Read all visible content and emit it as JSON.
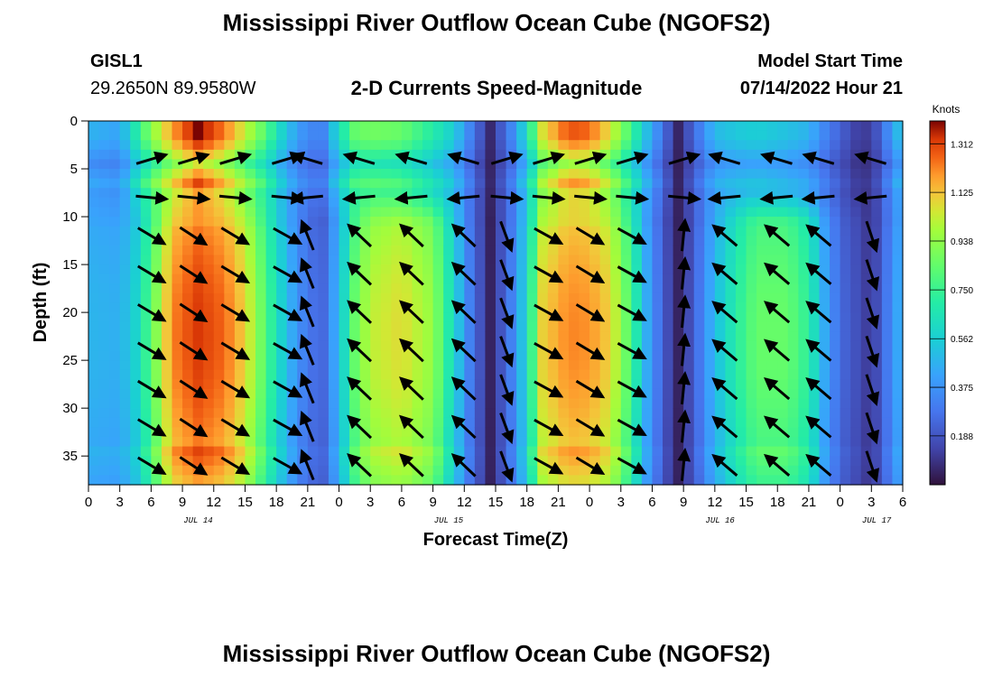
{
  "figure": {
    "title": "Mississippi River Outflow Ocean Cube (NGOFS2)",
    "bottom_title": "Mississippi River Outflow Ocean Cube (NGOFS2)",
    "station_id": "GISL1",
    "station_coords": "29.2650N  89.9580W",
    "plot_subtitle": "2-D Currents Speed-Magnitude",
    "model_start_label": "Model Start Time",
    "model_start_value": "07/14/2022 Hour 21"
  },
  "chart_data": {
    "type": "heatmap",
    "title": "2-D Currents Speed-Magnitude",
    "xlabel": "Forecast Time(Z)",
    "ylabel": "Depth (ft)",
    "x_range_hours": [
      0,
      78
    ],
    "y_range_ft": [
      0,
      38
    ],
    "x_ticks": [
      {
        "h": 0,
        "label": "0"
      },
      {
        "h": 3,
        "label": "3"
      },
      {
        "h": 6,
        "label": "6"
      },
      {
        "h": 9,
        "label": "9"
      },
      {
        "h": 12,
        "label": "12"
      },
      {
        "h": 15,
        "label": "15"
      },
      {
        "h": 18,
        "label": "18"
      },
      {
        "h": 21,
        "label": "21"
      },
      {
        "h": 24,
        "label": "0"
      },
      {
        "h": 27,
        "label": "3"
      },
      {
        "h": 30,
        "label": "6"
      },
      {
        "h": 33,
        "label": "9"
      },
      {
        "h": 36,
        "label": "12"
      },
      {
        "h": 39,
        "label": "15"
      },
      {
        "h": 42,
        "label": "18"
      },
      {
        "h": 45,
        "label": "21"
      },
      {
        "h": 48,
        "label": "0"
      },
      {
        "h": 51,
        "label": "3"
      },
      {
        "h": 54,
        "label": "6"
      },
      {
        "h": 57,
        "label": "9"
      },
      {
        "h": 60,
        "label": "12"
      },
      {
        "h": 63,
        "label": "15"
      },
      {
        "h": 66,
        "label": "18"
      },
      {
        "h": 69,
        "label": "21"
      },
      {
        "h": 72,
        "label": "0"
      },
      {
        "h": 75,
        "label": "3"
      },
      {
        "h": 78,
        "label": "6"
      }
    ],
    "y_ticks": [
      0,
      5,
      10,
      15,
      20,
      25,
      30,
      35
    ],
    "date_labels": [
      {
        "h": 10.5,
        "label": "JUL 14"
      },
      {
        "h": 34.5,
        "label": "JUL 15"
      },
      {
        "h": 60.5,
        "label": "JUL 16"
      },
      {
        "h": 75.5,
        "label": "JUL 17"
      }
    ],
    "colorbar": {
      "label": "Knots",
      "range": [
        0.0,
        1.4
      ],
      "ticks": [
        "1.312",
        "1.125",
        "0.938",
        "0.750",
        "0.562",
        "0.375",
        "0.188"
      ],
      "tick_values": [
        1.312,
        1.125,
        0.938,
        0.75,
        0.562,
        0.375,
        0.188
      ]
    },
    "columns": [
      {
        "h": 0,
        "surface": 0.42,
        "subsurface": 0.48
      },
      {
        "h": 3,
        "surface": 0.38,
        "subsurface": 0.46
      },
      {
        "h": 4.5,
        "surface": 0.6,
        "subsurface": 0.58
      },
      {
        "h": 6,
        "surface": 0.82,
        "subsurface": 0.82
      },
      {
        "h": 8,
        "surface": 1.05,
        "subsurface": 1.22
      },
      {
        "h": 10.5,
        "surface": 1.25,
        "subsurface": 1.33
      },
      {
        "h": 13,
        "surface": 1.1,
        "subsurface": 1.26
      },
      {
        "h": 15,
        "surface": 0.92,
        "subsurface": 1.1
      },
      {
        "h": 17,
        "surface": 0.72,
        "subsurface": 0.8
      },
      {
        "h": 19,
        "surface": 0.46,
        "subsurface": 0.5
      },
      {
        "h": 21,
        "surface": 0.3,
        "subsurface": 0.28
      },
      {
        "h": 22.5,
        "surface": 0.3,
        "subsurface": 0.25
      },
      {
        "h": 24,
        "surface": 0.56,
        "subsurface": 0.5
      },
      {
        "h": 25.5,
        "surface": 0.75,
        "subsurface": 0.85
      },
      {
        "h": 27,
        "surface": 0.78,
        "subsurface": 1.02
      },
      {
        "h": 30,
        "surface": 0.76,
        "subsurface": 1.08
      },
      {
        "h": 33,
        "surface": 0.62,
        "subsurface": 0.95
      },
      {
        "h": 35,
        "surface": 0.5,
        "subsurface": 0.6
      },
      {
        "h": 36.5,
        "surface": 0.3,
        "subsurface": 0.32
      },
      {
        "h": 38.5,
        "surface": 0.06,
        "subsurface": 0.05
      },
      {
        "h": 40.5,
        "surface": 0.3,
        "subsurface": 0.32
      },
      {
        "h": 42,
        "surface": 0.55,
        "subsurface": 0.6
      },
      {
        "h": 43.5,
        "surface": 0.95,
        "subsurface": 1.1
      },
      {
        "h": 46,
        "surface": 1.15,
        "subsurface": 1.22
      },
      {
        "h": 48,
        "surface": 1.12,
        "subsurface": 1.2
      },
      {
        "h": 50,
        "surface": 0.95,
        "subsurface": 1.1
      },
      {
        "h": 52,
        "surface": 0.68,
        "subsurface": 0.78
      },
      {
        "h": 53.5,
        "surface": 0.45,
        "subsurface": 0.45
      },
      {
        "h": 55,
        "surface": 0.25,
        "subsurface": 0.22
      },
      {
        "h": 56.5,
        "surface": 0.05,
        "subsurface": 0.05
      },
      {
        "h": 58,
        "surface": 0.22,
        "subsurface": 0.22
      },
      {
        "h": 60,
        "surface": 0.44,
        "subsurface": 0.5
      },
      {
        "h": 62,
        "surface": 0.48,
        "subsurface": 0.7
      },
      {
        "h": 64,
        "surface": 0.5,
        "subsurface": 0.85
      },
      {
        "h": 67,
        "surface": 0.46,
        "subsurface": 0.85
      },
      {
        "h": 69,
        "surface": 0.42,
        "subsurface": 0.72
      },
      {
        "h": 70.5,
        "surface": 0.3,
        "subsurface": 0.45
      },
      {
        "h": 72,
        "surface": 0.2,
        "subsurface": 0.25
      },
      {
        "h": 73.5,
        "surface": 0.12,
        "subsurface": 0.18
      },
      {
        "h": 75,
        "surface": 0.1,
        "subsurface": 0.1
      },
      {
        "h": 76.5,
        "surface": 0.3,
        "subsurface": 0.3
      },
      {
        "h": 78,
        "surface": 0.5,
        "subsurface": 0.5
      }
    ],
    "vector_columns": [
      {
        "h": 6,
        "dx": 1.0,
        "dy": 0.6,
        "surface": "east"
      },
      {
        "h": 10,
        "dx": 1.0,
        "dy": 0.65,
        "surface": "east"
      },
      {
        "h": 14,
        "dx": 1.0,
        "dy": 0.6,
        "surface": "east"
      },
      {
        "h": 19,
        "dx": 0.9,
        "dy": 0.5,
        "surface": "east"
      },
      {
        "h": 21,
        "dx": -0.4,
        "dy": -1.0,
        "surface": "west"
      },
      {
        "h": 26,
        "dx": -1.0,
        "dy": -0.95,
        "surface": "west"
      },
      {
        "h": 31,
        "dx": -1.0,
        "dy": -0.95,
        "surface": "west"
      },
      {
        "h": 36,
        "dx": -1.0,
        "dy": -0.95,
        "surface": "west"
      },
      {
        "h": 40,
        "dx": 0.3,
        "dy": 0.8,
        "surface": "east"
      },
      {
        "h": 44,
        "dx": 1.0,
        "dy": 0.55,
        "surface": "east"
      },
      {
        "h": 48,
        "dx": 1.0,
        "dy": 0.6,
        "surface": "east"
      },
      {
        "h": 52,
        "dx": 1.0,
        "dy": 0.55,
        "surface": "east"
      },
      {
        "h": 57,
        "dx": 0.1,
        "dy": -1.0,
        "surface": "east"
      },
      {
        "h": 61,
        "dx": -1.0,
        "dy": -0.85,
        "surface": "west"
      },
      {
        "h": 66,
        "dx": -1.0,
        "dy": -0.85,
        "surface": "west"
      },
      {
        "h": 70,
        "dx": -1.0,
        "dy": -0.85,
        "surface": "west"
      },
      {
        "h": 75,
        "dx": 0.3,
        "dy": 0.9,
        "surface": "west"
      }
    ],
    "vector_depths": [
      4,
      8,
      12,
      16,
      20,
      24,
      28,
      32,
      36
    ]
  }
}
